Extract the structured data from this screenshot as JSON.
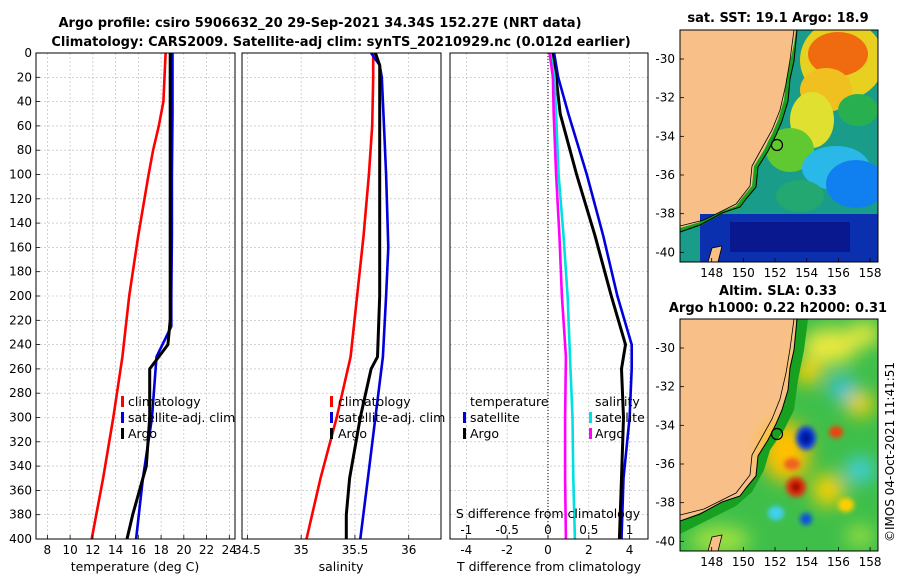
{
  "header": {
    "title_line1": "Argo profile: csiro 5906632_20 29-Sep-2021 34.34S 152.27E (NRT data)",
    "title_line2": "Climatology: CARS2009. Satellite-adj clim: synTS_20210929.nc (0.012d earlier)"
  },
  "colors": {
    "climatology": "#ff0000",
    "satellite": "#0000dd",
    "argo": "#000000",
    "sat_temp": "#00e0e0",
    "sat_sal": "#ff00ff"
  },
  "chart_data": [
    {
      "id": "temperature",
      "type": "line",
      "xlabel": "temperature (deg C)",
      "xlim": [
        7,
        24.5
      ],
      "ylim": [
        0,
        400
      ],
      "xticks": [
        8,
        10,
        12,
        14,
        16,
        18,
        20,
        22,
        24
      ],
      "yticks": [
        0,
        20,
        40,
        60,
        80,
        100,
        120,
        140,
        160,
        180,
        200,
        220,
        240,
        260,
        280,
        300,
        320,
        340,
        360,
        380,
        400
      ],
      "legend": [
        "climatology",
        "satellite-adj. clim",
        "Argo"
      ],
      "series": [
        {
          "name": "climatology",
          "depth": [
            0,
            20,
            40,
            60,
            80,
            100,
            150,
            200,
            250,
            300,
            350,
            400
          ],
          "values": [
            18.4,
            18.3,
            18.2,
            17.8,
            17.3,
            16.9,
            16.0,
            15.2,
            14.6,
            13.8,
            12.9,
            11.9
          ]
        },
        {
          "name": "satellite-adj. clim",
          "depth": [
            0,
            50,
            100,
            150,
            200,
            225,
            250,
            300,
            350,
            400
          ],
          "values": [
            19.0,
            19.0,
            18.95,
            18.95,
            18.9,
            18.9,
            17.6,
            17.2,
            16.4,
            15.8
          ]
        },
        {
          "name": "Argo",
          "depth": [
            0,
            50,
            100,
            150,
            200,
            220,
            240,
            260,
            300,
            340,
            360,
            380,
            400
          ],
          "values": [
            18.8,
            18.8,
            18.8,
            18.8,
            18.8,
            18.8,
            18.6,
            17.0,
            17.0,
            16.7,
            16.1,
            15.5,
            15.0
          ]
        }
      ]
    },
    {
      "id": "salinity",
      "type": "line",
      "xlabel": "salinity",
      "xlim": [
        34.45,
        36.3
      ],
      "ylim": [
        0,
        400
      ],
      "xticks": [
        34.5,
        35,
        35.5,
        36
      ],
      "xtick_labels": [
        "34.5",
        "35",
        "35.5",
        "36"
      ],
      "legend": [
        "climatology",
        "satellite-adj. clim",
        "Argo"
      ],
      "series": [
        {
          "name": "climatology",
          "depth": [
            0,
            20,
            60,
            100,
            150,
            200,
            250,
            300,
            350,
            400
          ],
          "values": [
            35.67,
            35.67,
            35.66,
            35.63,
            35.58,
            35.52,
            35.46,
            35.33,
            35.18,
            35.05
          ]
        },
        {
          "name": "satellite-adj. clim",
          "depth": [
            0,
            10,
            20,
            60,
            100,
            160,
            200,
            250,
            300,
            350,
            400
          ],
          "values": [
            35.65,
            35.73,
            35.75,
            35.77,
            35.79,
            35.81,
            35.79,
            35.76,
            35.69,
            35.62,
            35.55
          ]
        },
        {
          "name": "Argo",
          "depth": [
            0,
            10,
            20,
            60,
            100,
            150,
            200,
            250,
            260,
            300,
            350,
            380,
            400
          ],
          "values": [
            35.69,
            35.73,
            35.73,
            35.73,
            35.73,
            35.73,
            35.73,
            35.71,
            35.65,
            35.55,
            35.45,
            35.42,
            35.42
          ]
        }
      ]
    },
    {
      "id": "differences",
      "type": "line",
      "xlabel": "T difference from climatology",
      "xlabel_top": "S difference from climatology",
      "xlim": [
        -4.8,
        4.9
      ],
      "ylim": [
        0,
        400
      ],
      "xticks": [
        -4,
        -2,
        0,
        2,
        4
      ],
      "xticks_top": [
        -1,
        -0.5,
        0,
        0.5,
        1
      ],
      "xtick_top_labels": [
        "-1",
        "-0.5",
        "0",
        "0.5",
        "1"
      ],
      "legend_temperature": {
        "title": "temperature",
        "items": [
          "satellite",
          "Argo"
        ]
      },
      "legend_salinity": {
        "title": "salinity",
        "items": [
          "satellite",
          "Argo"
        ]
      },
      "series": [
        {
          "name": "T satellite",
          "depth": [
            0,
            20,
            50,
            100,
            150,
            200,
            240,
            260,
            300,
            350,
            400
          ],
          "values": [
            0.3,
            0.5,
            1.0,
            1.9,
            2.7,
            3.4,
            4.1,
            4.1,
            4.0,
            3.7,
            3.6
          ]
        },
        {
          "name": "T Argo",
          "depth": [
            0,
            20,
            50,
            100,
            150,
            200,
            240,
            260,
            300,
            350,
            400
          ],
          "values": [
            0.2,
            0.4,
            0.6,
            1.4,
            2.3,
            3.1,
            3.8,
            3.6,
            3.7,
            3.6,
            3.5
          ]
        },
        {
          "name": "S satellite",
          "depth": [
            0,
            20,
            50,
            100,
            150,
            200,
            250,
            300,
            350,
            400
          ],
          "values": [
            0.03,
            0.08,
            0.1,
            0.13,
            0.19,
            0.24,
            0.27,
            0.3,
            0.31,
            0.33
          ]
        },
        {
          "name": "S Argo",
          "depth": [
            0,
            20,
            50,
            100,
            150,
            200,
            250,
            300,
            350,
            400
          ],
          "values": [
            0.02,
            0.06,
            0.07,
            0.1,
            0.14,
            0.17,
            0.22,
            0.21,
            0.21,
            0.22
          ]
        }
      ]
    }
  ],
  "maps": [
    {
      "id": "sst-map",
      "title": "sat. SST: 19.1 Argo: 18.9",
      "yticks": [
        -30,
        -32,
        -34,
        -36,
        -38,
        -40
      ],
      "xticks": [
        148,
        150,
        152,
        154,
        156,
        158
      ],
      "lon_range": [
        146,
        158.5
      ],
      "lat_range": [
        -40.5,
        -28.5
      ],
      "argo_position": {
        "lon": 152.27,
        "lat": -34.34
      }
    },
    {
      "id": "sla-map",
      "title_line1": "Altim. SLA: 0.33",
      "title_line2": "Argo h1000: 0.22 h2000: 0.31",
      "yticks": [
        -30,
        -32,
        -34,
        -36,
        -38,
        -40
      ],
      "xticks": [
        148,
        150,
        152,
        154,
        156,
        158
      ],
      "lon_range": [
        146,
        158.5
      ],
      "lat_range": [
        -40.5,
        -28.5
      ],
      "argo_position": {
        "lon": 152.27,
        "lat": -34.34
      }
    }
  ],
  "footer": {
    "stamp": "©IMOS 04-Oct-2021 11:41:51"
  }
}
